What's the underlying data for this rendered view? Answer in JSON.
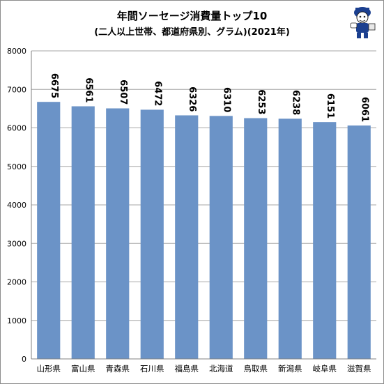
{
  "chart_data": {
    "type": "bar",
    "title": "年間ソーセージ消費量トップ10",
    "subtitle": "(二人以上世帯、都道府県別、グラム)(2021年)",
    "categories": [
      "山形県",
      "富山県",
      "青森県",
      "石川県",
      "福島県",
      "北海道",
      "鳥取県",
      "新潟県",
      "岐阜県",
      "滋賀県"
    ],
    "values": [
      6675,
      6561,
      6507,
      6472,
      6326,
      6310,
      6253,
      6238,
      6151,
      6061
    ],
    "ylim": [
      0,
      8000
    ],
    "yticks": [
      0,
      1000,
      2000,
      3000,
      4000,
      5000,
      6000,
      7000,
      8000
    ],
    "grid": true,
    "bar_color": "#6b93c7"
  }
}
